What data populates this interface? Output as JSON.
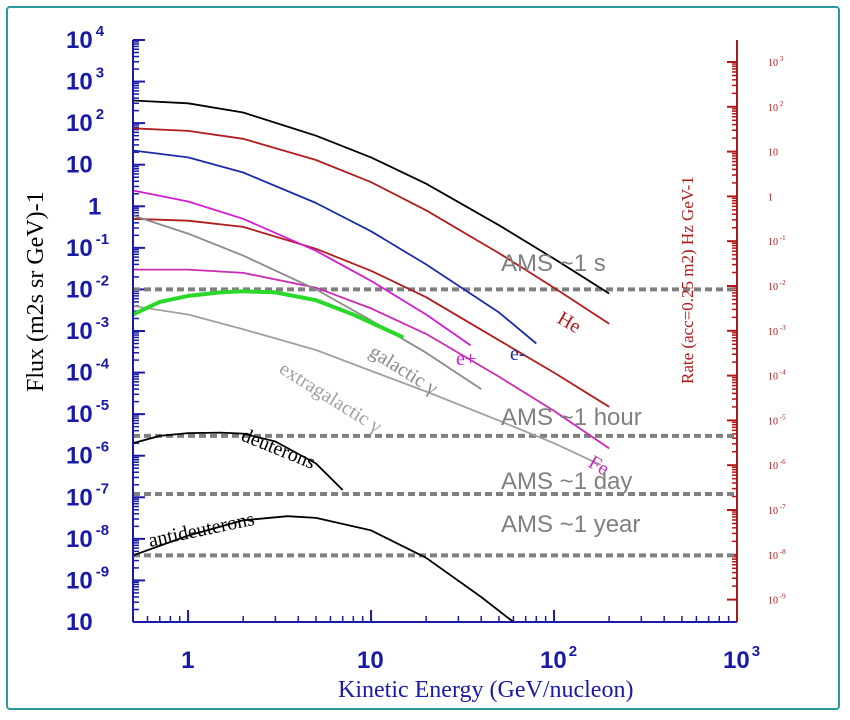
{
  "chart_data": {
    "type": "line",
    "xlabel": "Kinetic Energy (GeV/nucleon)",
    "ylabel": "Flux (m2s sr GeV)-1",
    "y2label": "Rate (acc=0.25 m2) Hz GeV-1",
    "xscale": "log",
    "yscale": "log",
    "xlim": [
      0.5,
      1000
    ],
    "ylim": [
      1e-10,
      10000.0
    ],
    "x_ticks": [
      {
        "base": "1",
        "exp": ""
      },
      {
        "base": "10",
        "exp": ""
      },
      {
        "base": "10",
        "exp": "2"
      },
      {
        "base": "10",
        "exp": "3"
      }
    ],
    "y_ticks": [
      {
        "base": "10",
        "exp": "4"
      },
      {
        "base": "10",
        "exp": "3"
      },
      {
        "base": "10",
        "exp": "2"
      },
      {
        "base": "10",
        "exp": ""
      },
      {
        "base": "1",
        "exp": ""
      },
      {
        "base": "10",
        "exp": "-1"
      },
      {
        "base": "10",
        "exp": "-2"
      },
      {
        "base": "10",
        "exp": "-3"
      },
      {
        "base": "10",
        "exp": "-4"
      },
      {
        "base": "10",
        "exp": "-5"
      },
      {
        "base": "10",
        "exp": "-6"
      },
      {
        "base": "10",
        "exp": "-7"
      },
      {
        "base": "10",
        "exp": "-8"
      },
      {
        "base": "10",
        "exp": "-9"
      },
      {
        "base": "10",
        "exp": ""
      }
    ],
    "y2_ticks": [
      {
        "base": "10",
        "exp": "3"
      },
      {
        "base": "10",
        "exp": "2"
      },
      {
        "base": "10",
        "exp": ""
      },
      {
        "base": "1",
        "exp": ""
      },
      {
        "base": "10",
        "exp": "-1"
      },
      {
        "base": "10",
        "exp": "-2"
      },
      {
        "base": "10",
        "exp": "-3"
      },
      {
        "base": "10",
        "exp": "-4"
      },
      {
        "base": "10",
        "exp": "-5"
      },
      {
        "base": "10",
        "exp": "-6"
      },
      {
        "base": "10",
        "exp": "-7"
      },
      {
        "base": "10",
        "exp": "-8"
      },
      {
        "base": "10",
        "exp": "-9"
      }
    ],
    "reference_lines": [
      {
        "label": "AMS ~1 s",
        "y": 0.01
      },
      {
        "label": "AMS ~1 hour",
        "y": 3e-06
      },
      {
        "label": "AMS ~1 day",
        "y": 1.2e-07
      },
      {
        "label": "AMS ~1 year",
        "y": 4e-09
      }
    ],
    "series": [
      {
        "name": "",
        "color": "#000000",
        "x": [
          0.5,
          1,
          2,
          5,
          10,
          20,
          50,
          100,
          200
        ],
        "y": [
          350,
          300,
          180,
          50,
          15,
          3.5,
          0.35,
          0.055,
          0.008
        ]
      },
      {
        "name": "He",
        "color": "#b21c1c",
        "x": [
          0.5,
          1,
          2,
          5,
          10,
          20,
          50,
          100,
          200
        ],
        "y": [
          75,
          65,
          42,
          13,
          3.8,
          0.8,
          0.075,
          0.011,
          0.0015
        ]
      },
      {
        "name": "e-",
        "color": "#1c2ca8",
        "x": [
          0.5,
          1,
          2,
          5,
          10,
          20,
          50,
          80
        ],
        "y": [
          22,
          15,
          6.5,
          1.2,
          0.25,
          0.04,
          0.0028,
          0.0005
        ]
      },
      {
        "name": "",
        "color": "#b21c1c",
        "x": [
          0.5,
          1,
          2,
          5,
          10,
          20,
          50,
          100,
          200
        ],
        "y": [
          0.5,
          0.45,
          0.32,
          0.095,
          0.028,
          0.0065,
          0.0006,
          0.0001,
          1.5e-05
        ]
      },
      {
        "name": "e+",
        "color": "#d21cd2",
        "x": [
          0.5,
          1,
          2,
          5,
          10,
          20,
          35
        ],
        "y": [
          2.4,
          1.3,
          0.5,
          0.085,
          0.016,
          0.0025,
          0.00045
        ]
      },
      {
        "name": "Fe",
        "color": "#cc2ab4",
        "x": [
          0.5,
          1,
          2,
          5,
          10,
          20,
          50,
          100,
          200
        ],
        "y": [
          0.03,
          0.03,
          0.025,
          0.011,
          0.0035,
          0.00085,
          8e-05,
          1.2e-05,
          1.5e-06
        ]
      },
      {
        "name": "galactic γ",
        "color": "#8a8a8a",
        "x": [
          0.5,
          1,
          2,
          5,
          10,
          20,
          40
        ],
        "y": [
          0.6,
          0.22,
          0.065,
          0.01,
          0.0018,
          0.0003,
          4e-05
        ]
      },
      {
        "name": "extragalactic γ",
        "color": "#a0a0a0",
        "x": [
          0.5,
          1,
          2,
          5,
          10,
          20,
          50,
          100,
          180
        ],
        "y": [
          0.004,
          0.0025,
          0.0011,
          0.00035,
          0.00011,
          3.5e-05,
          7e-06,
          2e-06,
          6e-07
        ]
      },
      {
        "name": "",
        "color": "#2ad82a",
        "x": [
          0.5,
          0.7,
          1,
          1.5,
          2,
          3,
          5,
          8,
          15
        ],
        "y": [
          0.0025,
          0.005,
          0.007,
          0.0085,
          0.009,
          0.0085,
          0.0055,
          0.0025,
          0.0007
        ]
      },
      {
        "name": "deuterons",
        "color": "#000000",
        "x": [
          0.5,
          0.7,
          1,
          1.5,
          2,
          3,
          5,
          7
        ],
        "y": [
          2e-06,
          3e-06,
          3.5e-06,
          3.6e-06,
          3.4e-06,
          2.2e-06,
          6.5e-07,
          1.5e-07
        ]
      },
      {
        "name": "antideuterons",
        "color": "#000000",
        "x": [
          0.5,
          1,
          2,
          3.5,
          5,
          10,
          20,
          40,
          60
        ],
        "y": [
          4e-09,
          1.2e-08,
          2.8e-08,
          3.5e-08,
          3.2e-08,
          1.6e-08,
          3.5e-09,
          4e-10,
          1e-10
        ]
      }
    ]
  }
}
